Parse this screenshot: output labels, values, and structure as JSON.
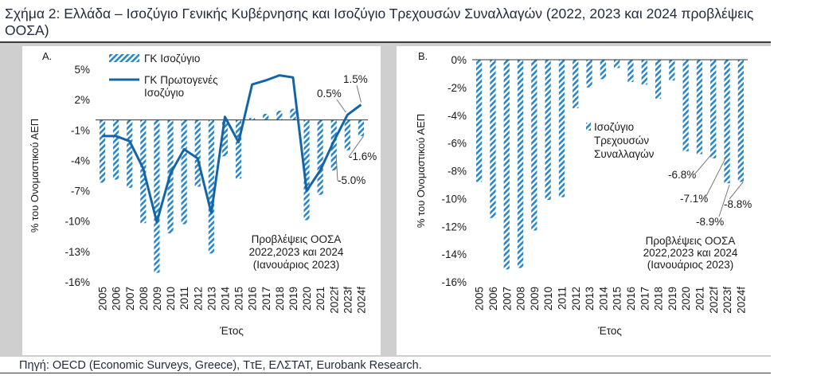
{
  "title": "Σχήμα 2: Ελλάδα – Ισοζύγιο Γενικής Κυβέρνησης και Ισοζύγιο Τρεχουσών Συναλλαγών (2022, 2023 και 2024 προβλέψεις ΟΟΣΑ)",
  "source": "Πηγή: OECD (Economic Surveys, Greece), ΤτΕ, ΕΛΣΤΑΤ, Eurobank Research.",
  "colors": {
    "bar": "#2a86c6",
    "line": "#1465a8"
  },
  "chart_data": [
    {
      "type": "bar+line",
      "panel_label": "A.",
      "categories": [
        "2005",
        "2006",
        "2007",
        "2008",
        "2009",
        "2010",
        "2011",
        "2012",
        "2013",
        "2014",
        "2015",
        "2016",
        "2017",
        "2018",
        "2019",
        "2020",
        "2021",
        "2022f",
        "2023f",
        "2024f"
      ],
      "series": [
        {
          "name": "ΓΚ Ισοζύγιο",
          "type": "bar",
          "values": [
            -6.2,
            -5.9,
            -6.7,
            -10.2,
            -15.1,
            -11.2,
            -10.3,
            -6.6,
            -13.2,
            -3.6,
            -5.8,
            0.2,
            0.6,
            0.9,
            1.1,
            -9.9,
            -7.4,
            -5.0,
            -3.0,
            -1.6
          ]
        },
        {
          "name": "ΓΚ Πρωτογενές Ισοζύγιο",
          "type": "line",
          "values": [
            -1.6,
            -1.6,
            -2.1,
            -4.8,
            -10.1,
            -5.3,
            -2.9,
            -3.8,
            -9.2,
            0.3,
            -2.2,
            3.5,
            3.9,
            4.4,
            4.2,
            -7.0,
            -5.0,
            -2.1,
            0.5,
            1.5
          ]
        }
      ],
      "annotations": [
        "1.5%",
        "0.5%",
        "-1.6%",
        "-5.0%"
      ],
      "legend": [
        "ΓΚ Ισοζύγιο",
        "ΓΚ Πρωτογενές",
        "Ισοζύγιο"
      ],
      "yticks": [
        "5%",
        "2%",
        "-1%",
        "-4%",
        "-7%",
        "-10%",
        "-13%",
        "-16%"
      ],
      "ylim": [
        -16,
        5
      ],
      "xlabel": "Έτος",
      "ylabel": "% του Ονομαστικού ΑΕΠ",
      "note": [
        "Προβλέψεις ΟΟΣΑ",
        "2022,2023 και 2024",
        "(Ιανουάριος 2023)"
      ]
    },
    {
      "type": "bar",
      "panel_label": "B.",
      "categories": [
        "2005",
        "2006",
        "2007",
        "2008",
        "2009",
        "2010",
        "2011",
        "2012",
        "2013",
        "2014",
        "2015",
        "2016",
        "2017",
        "2018",
        "2019",
        "2020",
        "2021",
        "2022f",
        "2023f",
        "2024f"
      ],
      "series": [
        {
          "name": "Ισοζύγιο Τρεχουσών Συναλλαγών",
          "type": "bar",
          "values": [
            -8.8,
            -11.4,
            -15.1,
            -15.0,
            -12.3,
            -10.1,
            -9.9,
            -3.5,
            -2.0,
            -1.4,
            -0.6,
            -1.6,
            -1.8,
            -2.8,
            -1.5,
            -6.6,
            -6.8,
            -7.1,
            -8.9,
            -8.8
          ]
        }
      ],
      "annotations": [
        "-6.8%",
        "-7.1%",
        "-8.9%",
        "-8.8%"
      ],
      "legend": [
        "Ισοζύγιο",
        "Τρεχουσών",
        "Συναλλαγών"
      ],
      "yticks": [
        "0%",
        "-2%",
        "-4%",
        "-6%",
        "-8%",
        "-10%",
        "-12%",
        "-14%",
        "-16%"
      ],
      "ylim": [
        -16,
        0
      ],
      "xlabel": "Έτος",
      "ylabel": "% του Ονομαστικού ΑΕΠ",
      "note": [
        "Προβλέψεις ΟΟΣΑ",
        "2022,2023 και 2024",
        "(Ιανουάριος 2023)"
      ]
    }
  ]
}
